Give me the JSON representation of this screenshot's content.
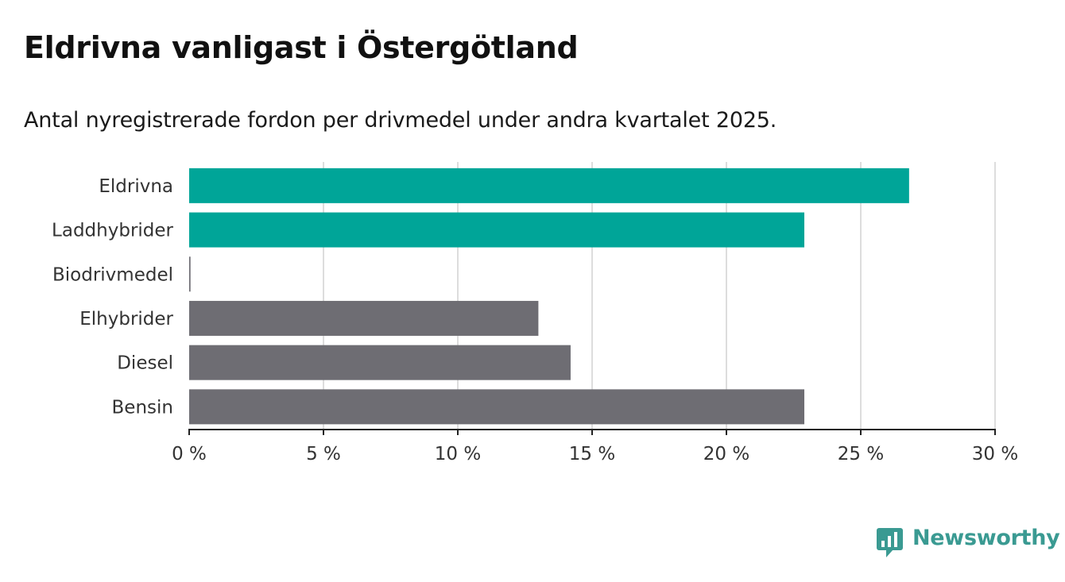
{
  "title": "Eldrivna vanligast i Östergötland",
  "subtitle": "Antal nyregistrerade fordon per drivmedel under andra kvartalet 2025.",
  "brand": {
    "name": "Newsworthy",
    "icon": "newsworthy-chart-bubble-icon"
  },
  "colors": {
    "highlight": "#00a598",
    "other": "#6e6d73",
    "grid": "#dddddd",
    "axis": "#222222"
  },
  "chart_data": {
    "type": "bar",
    "orientation": "horizontal",
    "categories": [
      "Eldrivna",
      "Laddhybrider",
      "Biodrivmedel",
      "Elhybrider",
      "Diesel",
      "Bensin"
    ],
    "values": [
      26.8,
      22.9,
      0.05,
      13.0,
      14.2,
      22.9
    ],
    "highlight": [
      true,
      true,
      false,
      false,
      false,
      false
    ],
    "xlim": [
      0,
      30
    ],
    "xticks": [
      0,
      5,
      10,
      15,
      20,
      25,
      30
    ],
    "xtick_labels": [
      "0 %",
      "5 %",
      "10 %",
      "15 %",
      "20 %",
      "25 %",
      "30 %"
    ],
    "grid": "vertical",
    "legend": "none"
  }
}
